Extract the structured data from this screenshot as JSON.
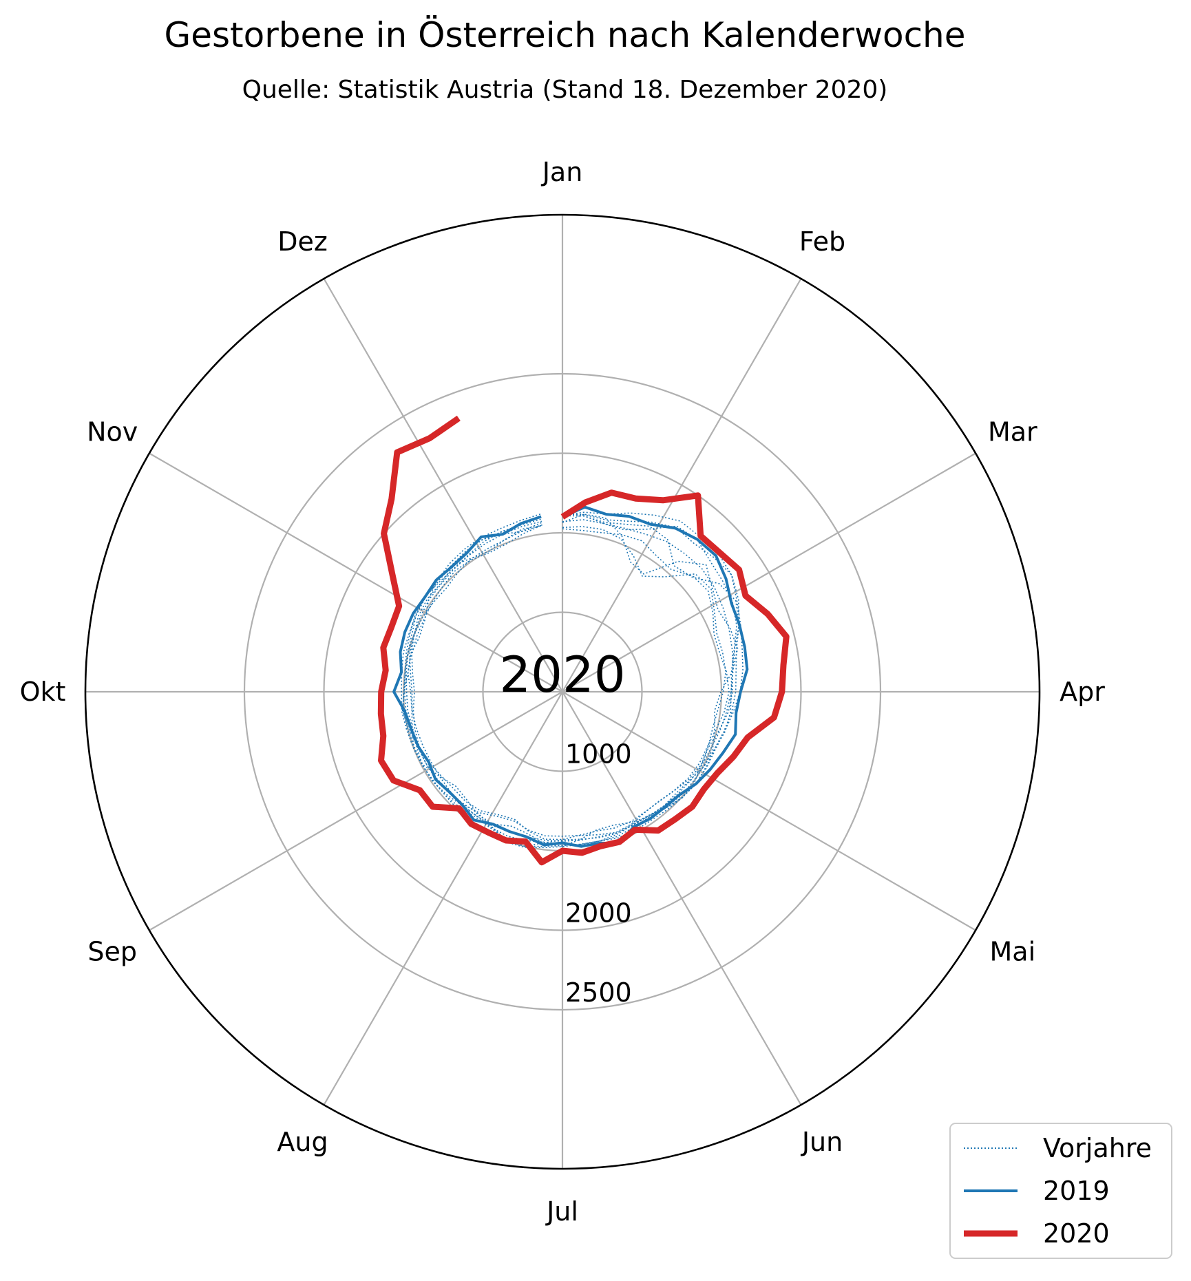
{
  "chart_data": {
    "type": "line",
    "subtype": "polar",
    "title": "Gestorbene in Österreich nach Kalenderwoche",
    "subtitle": "Quelle: Statistik Austria (Stand 18. Dezember 2020)",
    "center_label": "2020",
    "angular_ticks": [
      "Jan",
      "Feb",
      "Mar",
      "Apr",
      "Mai",
      "Jun",
      "Jul",
      "Aug",
      "Sep",
      "Okt",
      "Nov",
      "Dez"
    ],
    "radial_ticks": [
      1000,
      2000,
      2500
    ],
    "radial_grid": [
      500,
      1000,
      1500,
      2000,
      2500
    ],
    "rlim": [
      500,
      3500
    ],
    "x_unit": "Kalenderwoche",
    "y_unit": "Gestorbene",
    "grid": true,
    "legend_position": "bottom-right",
    "colors": {
      "Vorjahre": "#1f77b4",
      "2019": "#1f77b4",
      "2020": "#d62728"
    },
    "series": [
      {
        "name": "2020",
        "style": "thick-solid",
        "x": [
          1,
          2,
          3,
          4,
          5,
          6,
          7,
          8,
          9,
          10,
          11,
          12,
          13,
          14,
          15,
          16,
          17,
          18,
          19,
          20,
          21,
          22,
          23,
          24,
          25,
          26,
          27,
          28,
          29,
          30,
          31,
          32,
          33,
          34,
          35,
          36,
          37,
          38,
          39,
          40,
          41,
          42,
          43,
          44,
          45,
          46,
          47,
          48,
          49,
          50
        ],
        "values": [
          1600,
          1700,
          1790,
          1800,
          1860,
          2000,
          1810,
          1820,
          1850,
          1800,
          1880,
          1950,
          1900,
          1880,
          1840,
          1700,
          1650,
          1600,
          1580,
          1590,
          1570,
          1560,
          1480,
          1510,
          1500,
          1520,
          1500,
          1580,
          1470,
          1500,
          1500,
          1510,
          1480,
          1590,
          1590,
          1700,
          1720,
          1660,
          1650,
          1640,
          1620,
          1660,
          1650,
          1660,
          1800,
          2000,
          2120,
          2330,
          2300,
          2340
        ]
      },
      {
        "name": "2019",
        "style": "solid",
        "x": [
          1,
          2,
          3,
          4,
          5,
          6,
          7,
          8,
          9,
          10,
          11,
          12,
          13,
          14,
          15,
          16,
          17,
          18,
          19,
          20,
          21,
          22,
          23,
          24,
          25,
          26,
          27,
          28,
          29,
          30,
          31,
          32,
          33,
          34,
          35,
          36,
          37,
          38,
          39,
          40,
          41,
          42,
          43,
          44,
          45,
          46,
          47,
          48,
          49,
          50,
          51,
          52
        ],
        "values": [
          1600,
          1670,
          1650,
          1680,
          1690,
          1750,
          1780,
          1790,
          1750,
          1700,
          1690,
          1680,
          1670,
          1620,
          1600,
          1620,
          1580,
          1550,
          1520,
          1480,
          1470,
          1470,
          1460,
          1520,
          1480,
          1480,
          1450,
          1470,
          1440,
          1440,
          1440,
          1480,
          1450,
          1450,
          1470,
          1450,
          1470,
          1480,
          1500,
          1560,
          1520,
          1550,
          1560,
          1560,
          1550,
          1560,
          1550,
          1560,
          1600,
          1560,
          1590,
          1610
        ]
      },
      {
        "name": "Vorjahre",
        "style": "dotted",
        "x": [
          1,
          2,
          3,
          4,
          5,
          6,
          7,
          8,
          9,
          10,
          11,
          12,
          13,
          14,
          15,
          16,
          17,
          18,
          19,
          20,
          21,
          22,
          23,
          24,
          25,
          26,
          27,
          28,
          29,
          30,
          31,
          32,
          33,
          34,
          35,
          36,
          37,
          38,
          39,
          40,
          41,
          42,
          43,
          44,
          45,
          46,
          47,
          48,
          49,
          50,
          51,
          52
        ],
        "values": [
          1570,
          1590,
          1590,
          1600,
          1620,
          1650,
          1660,
          1670,
          1660,
          1640,
          1620,
          1600,
          1580,
          1560,
          1540,
          1520,
          1500,
          1490,
          1480,
          1470,
          1460,
          1450,
          1450,
          1450,
          1440,
          1440,
          1440,
          1440,
          1440,
          1440,
          1450,
          1450,
          1450,
          1450,
          1460,
          1470,
          1470,
          1470,
          1480,
          1480,
          1490,
          1500,
          1500,
          1510,
          1520,
          1520,
          1530,
          1540,
          1550,
          1560,
          1570,
          1580
        ],
        "variation": [
          60,
          70,
          80,
          120,
          170,
          250,
          270,
          230,
          180,
          130,
          110,
          90,
          80,
          70,
          60,
          55,
          50,
          50,
          50,
          45,
          45,
          45,
          45,
          45,
          45,
          50,
          55,
          60,
          80,
          90,
          80,
          60,
          55,
          50,
          45,
          45,
          45,
          45,
          45,
          45,
          45,
          45,
          45,
          45,
          45,
          50,
          55,
          55,
          60,
          60,
          65,
          70
        ]
      }
    ]
  },
  "legend": {
    "items": [
      {
        "label": "Vorjahre"
      },
      {
        "label": "2019"
      },
      {
        "label": "2020"
      }
    ]
  }
}
